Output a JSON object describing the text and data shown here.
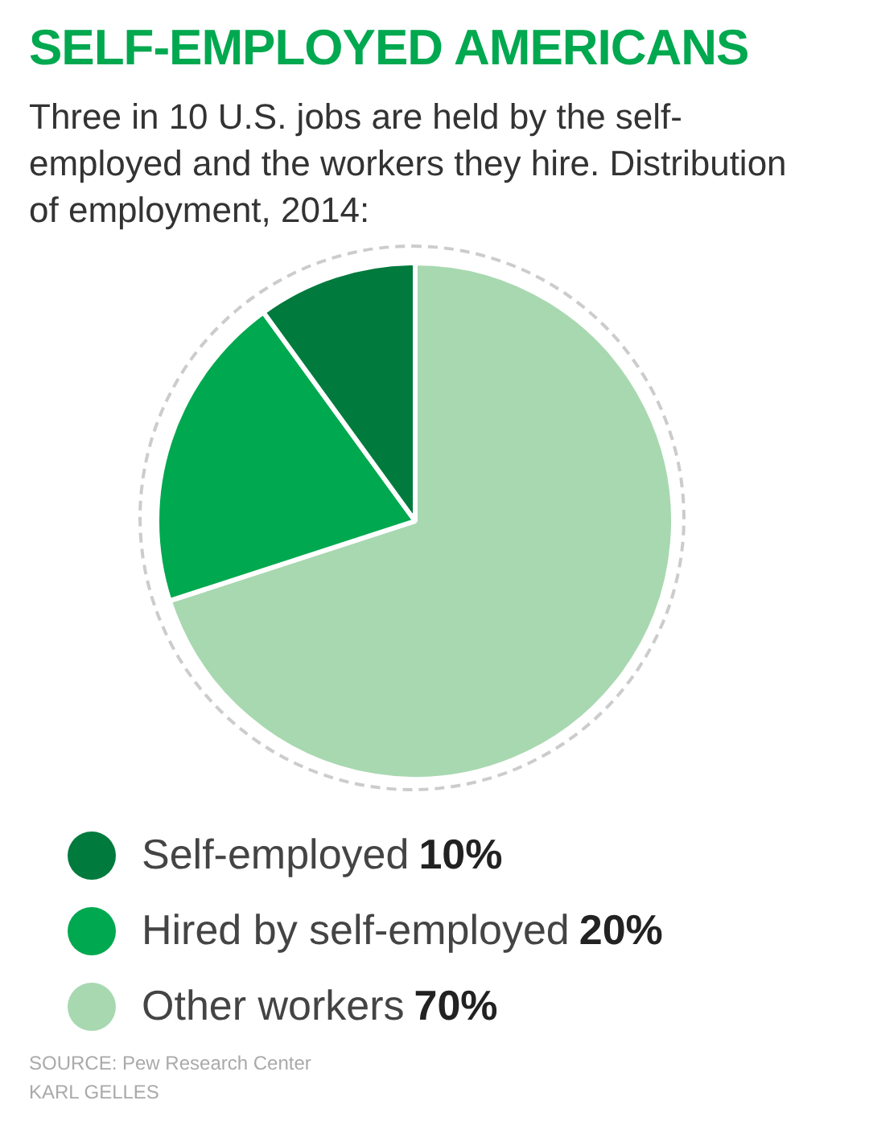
{
  "chart_data": {
    "type": "pie",
    "title": "SELF-EMPLOYED AMERICANS",
    "subtitle": "Three in 10 U.S. jobs are held by the self-employed and the workers they hire. Distribution of employment, 2014:",
    "categories": [
      "Self-employed",
      "Hired by self-employed",
      "Other workers"
    ],
    "values": [
      10,
      20,
      70
    ],
    "colors": [
      "#007a3d",
      "#00a84f",
      "#a8d8b0"
    ],
    "value_labels": [
      "10%",
      "20%",
      "70%"
    ],
    "legend": "bottom",
    "annotations": [
      "SOURCE: Pew Research Center",
      "KARL GELLES"
    ]
  }
}
